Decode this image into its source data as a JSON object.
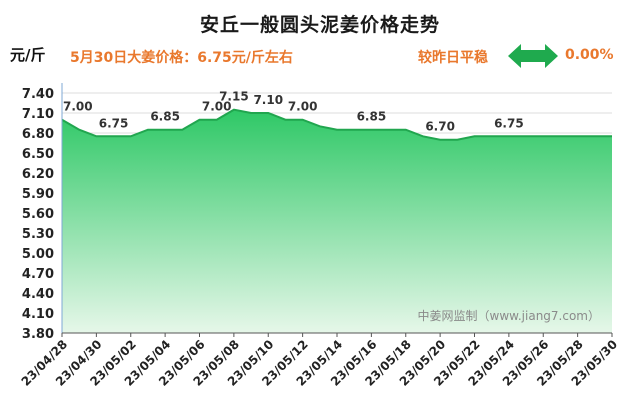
{
  "header": {
    "title": "安丘一般圆头泥姜价格走势",
    "unit": "元/斤",
    "price_note": "5月30日大姜价格：6.75元/斤左右",
    "compare_label": "较昨日平稳",
    "change": "0.00%",
    "arrow_icon": "double-arrow-icon"
  },
  "watermark": "中姜网监制（www.jiang7.com）",
  "colors": {
    "accent": "#e9782d",
    "fill_top": "#2ec866",
    "fill_bottom": "#e6f7e9",
    "line": "#21a64f",
    "arrow": "#1faa4e"
  },
  "chart_data": {
    "type": "area",
    "title": "安丘一般圆头泥姜价格走势",
    "ylabel": "元/斤",
    "ylim": [
      3.8,
      7.4
    ],
    "yticks": [
      "7.40",
      "7.10",
      "6.80",
      "6.50",
      "6.20",
      "5.90",
      "5.60",
      "5.30",
      "5.00",
      "4.70",
      "4.40",
      "4.10",
      "3.80"
    ],
    "xticks": [
      "23/04/28",
      "23/04/30",
      "23/05/02",
      "23/05/04",
      "23/05/06",
      "23/05/08",
      "23/05/10",
      "23/05/12",
      "23/05/14",
      "23/05/16",
      "23/05/18",
      "23/05/20",
      "23/05/22",
      "23/05/24",
      "23/05/26",
      "23/05/28",
      "23/05/30"
    ],
    "x": [
      "23/04/28",
      "23/04/29",
      "23/04/30",
      "23/05/01",
      "23/05/02",
      "23/05/03",
      "23/05/04",
      "23/05/05",
      "23/05/06",
      "23/05/07",
      "23/05/08",
      "23/05/09",
      "23/05/10",
      "23/05/11",
      "23/05/12",
      "23/05/13",
      "23/05/14",
      "23/05/15",
      "23/05/16",
      "23/05/17",
      "23/05/18",
      "23/05/19",
      "23/05/20",
      "23/05/21",
      "23/05/22",
      "23/05/23",
      "23/05/24",
      "23/05/25",
      "23/05/26",
      "23/05/27",
      "23/05/28",
      "23/05/29",
      "23/05/30"
    ],
    "values": [
      7.0,
      6.85,
      6.75,
      6.75,
      6.75,
      6.85,
      6.85,
      6.85,
      7.0,
      7.0,
      7.15,
      7.1,
      7.1,
      7.0,
      7.0,
      6.9,
      6.85,
      6.85,
      6.85,
      6.85,
      6.85,
      6.75,
      6.7,
      6.7,
      6.75,
      6.75,
      6.75,
      6.75,
      6.75,
      6.75,
      6.75,
      6.75,
      6.75
    ],
    "data_labels": [
      {
        "index": 0,
        "text": "7.00"
      },
      {
        "index": 3,
        "text": "6.75"
      },
      {
        "index": 6,
        "text": "6.85"
      },
      {
        "index": 9,
        "text": "7.00"
      },
      {
        "index": 10,
        "text": "7.15"
      },
      {
        "index": 12,
        "text": "7.10"
      },
      {
        "index": 14,
        "text": "7.00"
      },
      {
        "index": 18,
        "text": "6.85"
      },
      {
        "index": 22,
        "text": "6.70"
      },
      {
        "index": 26,
        "text": "6.75"
      }
    ],
    "grid": true,
    "legend": "none"
  }
}
